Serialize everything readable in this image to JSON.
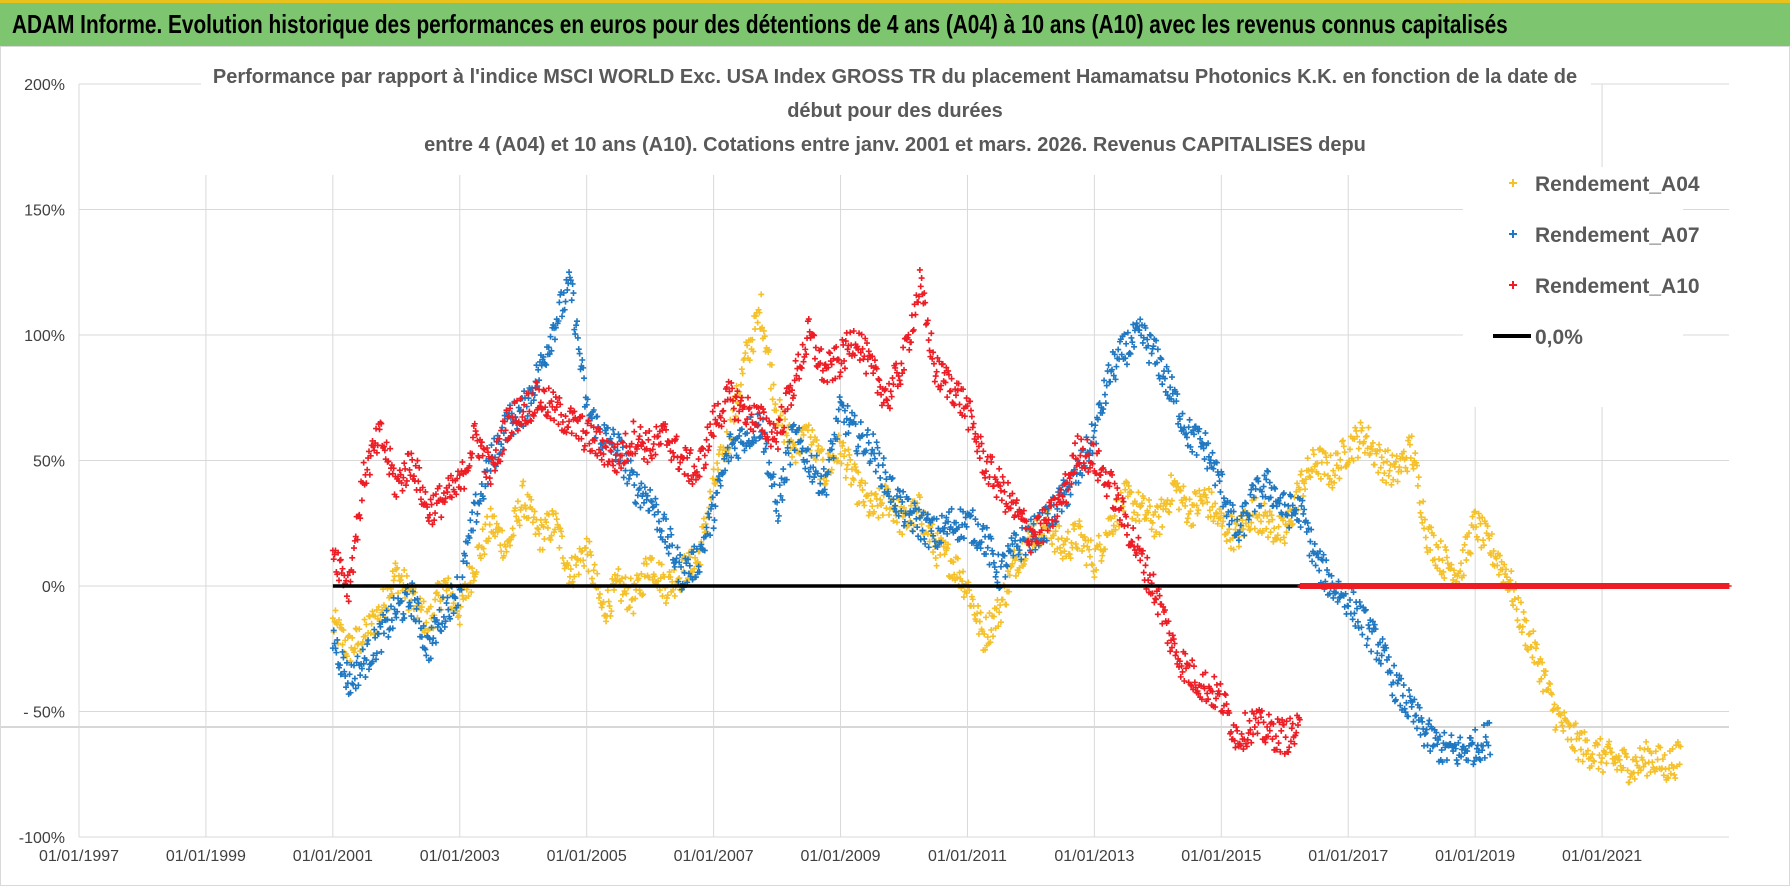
{
  "header": {
    "title": "ADAM Informe. Evolution historique des performances en euros pour des détentions de 4 ans (A04) à 10 ans (A10) avec les revenus connus capitalisés"
  },
  "colors": {
    "banner": "#7dc56e",
    "banner_border": "#e8c21a",
    "A04": "#f5c12b",
    "A07": "#1f78c1",
    "A10": "#ee1c24",
    "zero_line": "#000000",
    "grid": "#d9d9d9"
  },
  "chart_data": {
    "type": "scatter",
    "title_lines": [
      "Performance par rapport à l'indice MSCI WORLD Exc. USA Index GROSS TR  du placement Hamamatsu Photonics K.K. en fonction de la date de",
      "début pour des durées",
      "entre 4 (A04) et 10 ans (A10). Cotations entre janv. 2001 et mars. 2026. Revenus CAPITALISES depu"
    ],
    "xlabel": "",
    "ylabel": "",
    "x_ticks": [
      "01/01/1997",
      "01/01/1999",
      "01/01/2001",
      "01/01/2003",
      "01/01/2005",
      "01/01/2007",
      "01/01/2009",
      "01/01/2011",
      "01/01/2013",
      "01/01/2015",
      "01/01/2017",
      "01/01/2019",
      "01/01/2021"
    ],
    "xlim": [
      "1997-01-01",
      "2023-01-01"
    ],
    "y_ticks": [
      "200%",
      "150%",
      "100%",
      "50%",
      "0%",
      "- 50%",
      "-100%"
    ],
    "ylim": [
      -100,
      200
    ],
    "grid": true,
    "legend_position": "right",
    "legend": [
      {
        "label": "Rendement_A04",
        "marker": "+",
        "color": "#f5c12b"
      },
      {
        "label": "Rendement_A07",
        "marker": "+",
        "color": "#1f78c1"
      },
      {
        "label": "Rendement_A10",
        "marker": "+",
        "color": "#ee1c24"
      },
      {
        "label": "0,0%",
        "marker": "line",
        "color": "#000000"
      }
    ],
    "reference_line": {
      "y": 0,
      "from": "2001-01-01",
      "to": "2023-01-01"
    },
    "series": [
      {
        "name": "Rendement_A04",
        "color": "#f5c12b",
        "points": [
          [
            "2001-01",
            -15
          ],
          [
            "2001-04",
            -25
          ],
          [
            "2001-07",
            -20
          ],
          [
            "2001-10",
            -10
          ],
          [
            "2002-01",
            5
          ],
          [
            "2002-04",
            -5
          ],
          [
            "2002-07",
            -15
          ],
          [
            "2002-10",
            0
          ],
          [
            "2003-01",
            -10
          ],
          [
            "2003-04",
            10
          ],
          [
            "2003-07",
            25
          ],
          [
            "2003-10",
            15
          ],
          [
            "2004-01",
            35
          ],
          [
            "2004-04",
            20
          ],
          [
            "2004-07",
            25
          ],
          [
            "2004-10",
            5
          ],
          [
            "2005-01",
            15
          ],
          [
            "2005-04",
            -10
          ],
          [
            "2005-07",
            0
          ],
          [
            "2005-10",
            -5
          ],
          [
            "2006-01",
            10
          ],
          [
            "2006-04",
            0
          ],
          [
            "2006-07",
            5
          ],
          [
            "2006-10",
            10
          ],
          [
            "2007-01",
            40
          ],
          [
            "2007-04",
            60
          ],
          [
            "2007-07",
            90
          ],
          [
            "2007-10",
            110
          ],
          [
            "2008-01",
            70
          ],
          [
            "2008-04",
            55
          ],
          [
            "2008-07",
            60
          ],
          [
            "2008-10",
            45
          ],
          [
            "2009-01",
            55
          ],
          [
            "2009-04",
            40
          ],
          [
            "2009-07",
            30
          ],
          [
            "2009-10",
            35
          ],
          [
            "2010-01",
            25
          ],
          [
            "2010-04",
            30
          ],
          [
            "2010-07",
            15
          ],
          [
            "2010-10",
            10
          ],
          [
            "2011-01",
            0
          ],
          [
            "2011-04",
            -20
          ],
          [
            "2011-07",
            -10
          ],
          [
            "2011-10",
            10
          ],
          [
            "2012-01",
            20
          ],
          [
            "2012-04",
            25
          ],
          [
            "2012-07",
            15
          ],
          [
            "2012-10",
            20
          ],
          [
            "2013-01",
            10
          ],
          [
            "2013-04",
            25
          ],
          [
            "2013-07",
            35
          ],
          [
            "2013-10",
            30
          ],
          [
            "2014-01",
            25
          ],
          [
            "2014-04",
            40
          ],
          [
            "2014-07",
            30
          ],
          [
            "2014-10",
            35
          ],
          [
            "2015-01",
            25
          ],
          [
            "2015-04",
            20
          ],
          [
            "2015-07",
            30
          ],
          [
            "2015-10",
            25
          ],
          [
            "2016-01",
            20
          ],
          [
            "2016-04",
            40
          ],
          [
            "2016-07",
            50
          ],
          [
            "2016-10",
            45
          ],
          [
            "2017-01",
            55
          ],
          [
            "2017-04",
            60
          ],
          [
            "2017-07",
            50
          ],
          [
            "2017-10",
            45
          ],
          [
            "2018-01",
            55
          ],
          [
            "2018-04",
            20
          ],
          [
            "2018-07",
            10
          ],
          [
            "2018-10",
            5
          ],
          [
            "2019-01",
            25
          ],
          [
            "2019-04",
            15
          ],
          [
            "2019-07",
            5
          ],
          [
            "2019-10",
            -15
          ],
          [
            "2020-01",
            -30
          ],
          [
            "2020-04",
            -50
          ],
          [
            "2020-07",
            -60
          ],
          [
            "2020-10",
            -65
          ],
          [
            "2021-01",
            -68
          ],
          [
            "2021-04",
            -70
          ],
          [
            "2021-07",
            -72
          ],
          [
            "2021-10",
            -68
          ],
          [
            "2022-01",
            -72
          ],
          [
            "2022-04",
            -68
          ]
        ]
      },
      {
        "name": "Rendement_A07",
        "color": "#1f78c1",
        "points": [
          [
            "2001-01",
            -20
          ],
          [
            "2001-04",
            -38
          ],
          [
            "2001-07",
            -30
          ],
          [
            "2001-10",
            -20
          ],
          [
            "2002-01",
            -10
          ],
          [
            "2002-04",
            -5
          ],
          [
            "2002-07",
            -25
          ],
          [
            "2002-10",
            -10
          ],
          [
            "2003-01",
            0
          ],
          [
            "2003-04",
            30
          ],
          [
            "2003-07",
            50
          ],
          [
            "2003-10",
            65
          ],
          [
            "2004-01",
            70
          ],
          [
            "2004-04",
            85
          ],
          [
            "2004-07",
            105
          ],
          [
            "2004-10",
            120
          ],
          [
            "2005-01",
            70
          ],
          [
            "2005-04",
            60
          ],
          [
            "2005-07",
            55
          ],
          [
            "2005-10",
            40
          ],
          [
            "2006-01",
            35
          ],
          [
            "2006-04",
            20
          ],
          [
            "2006-07",
            5
          ],
          [
            "2006-10",
            10
          ],
          [
            "2007-01",
            30
          ],
          [
            "2007-04",
            55
          ],
          [
            "2007-07",
            60
          ],
          [
            "2007-10",
            65
          ],
          [
            "2008-01",
            30
          ],
          [
            "2008-04",
            60
          ],
          [
            "2008-07",
            50
          ],
          [
            "2008-10",
            40
          ],
          [
            "2009-01",
            70
          ],
          [
            "2009-04",
            60
          ],
          [
            "2009-07",
            55
          ],
          [
            "2009-10",
            40
          ],
          [
            "2010-01",
            30
          ],
          [
            "2010-04",
            25
          ],
          [
            "2010-07",
            20
          ],
          [
            "2010-10",
            25
          ],
          [
            "2011-01",
            25
          ],
          [
            "2011-04",
            20
          ],
          [
            "2011-07",
            5
          ],
          [
            "2011-10",
            15
          ],
          [
            "2012-01",
            20
          ],
          [
            "2012-04",
            25
          ],
          [
            "2012-07",
            35
          ],
          [
            "2012-10",
            45
          ],
          [
            "2013-01",
            60
          ],
          [
            "2013-04",
            85
          ],
          [
            "2013-07",
            95
          ],
          [
            "2013-10",
            100
          ],
          [
            "2014-01",
            90
          ],
          [
            "2014-04",
            75
          ],
          [
            "2014-07",
            60
          ],
          [
            "2014-10",
            55
          ],
          [
            "2015-01",
            40
          ],
          [
            "2015-04",
            20
          ],
          [
            "2015-07",
            35
          ],
          [
            "2015-10",
            40
          ],
          [
            "2016-01",
            30
          ],
          [
            "2016-04",
            30
          ],
          [
            "2016-07",
            10
          ],
          [
            "2016-10",
            0
          ],
          [
            "2017-01",
            -5
          ],
          [
            "2017-04",
            -15
          ],
          [
            "2017-07",
            -25
          ],
          [
            "2017-10",
            -40
          ],
          [
            "2018-01",
            -50
          ],
          [
            "2018-04",
            -60
          ],
          [
            "2018-07",
            -65
          ],
          [
            "2018-10",
            -66
          ],
          [
            "2019-01",
            -64
          ],
          [
            "2019-04",
            -60
          ]
        ]
      },
      {
        "name": "Rendement_A10",
        "color": "#ee1c24",
        "points": [
          [
            "2001-01",
            15
          ],
          [
            "2001-04",
            0
          ],
          [
            "2001-07",
            45
          ],
          [
            "2001-10",
            60
          ],
          [
            "2002-01",
            40
          ],
          [
            "2002-04",
            50
          ],
          [
            "2002-07",
            30
          ],
          [
            "2002-10",
            35
          ],
          [
            "2003-01",
            40
          ],
          [
            "2003-04",
            60
          ],
          [
            "2003-07",
            45
          ],
          [
            "2003-10",
            65
          ],
          [
            "2004-01",
            70
          ],
          [
            "2004-04",
            75
          ],
          [
            "2004-07",
            70
          ],
          [
            "2004-10",
            65
          ],
          [
            "2005-01",
            60
          ],
          [
            "2005-04",
            55
          ],
          [
            "2005-07",
            50
          ],
          [
            "2005-10",
            60
          ],
          [
            "2006-01",
            55
          ],
          [
            "2006-04",
            60
          ],
          [
            "2006-07",
            50
          ],
          [
            "2006-10",
            45
          ],
          [
            "2007-01",
            65
          ],
          [
            "2007-04",
            75
          ],
          [
            "2007-07",
            70
          ],
          [
            "2007-10",
            65
          ],
          [
            "2008-01",
            60
          ],
          [
            "2008-04",
            80
          ],
          [
            "2008-07",
            100
          ],
          [
            "2008-10",
            85
          ],
          [
            "2009-01",
            90
          ],
          [
            "2009-04",
            100
          ],
          [
            "2009-07",
            85
          ],
          [
            "2009-10",
            75
          ],
          [
            "2010-01",
            90
          ],
          [
            "2010-04",
            120
          ],
          [
            "2010-07",
            85
          ],
          [
            "2010-10",
            80
          ],
          [
            "2011-01",
            70
          ],
          [
            "2011-04",
            50
          ],
          [
            "2011-07",
            40
          ],
          [
            "2011-10",
            30
          ],
          [
            "2012-01",
            20
          ],
          [
            "2012-04",
            25
          ],
          [
            "2012-07",
            35
          ],
          [
            "2012-10",
            55
          ],
          [
            "2013-01",
            50
          ],
          [
            "2013-04",
            40
          ],
          [
            "2013-07",
            25
          ],
          [
            "2013-10",
            10
          ],
          [
            "2014-01",
            -5
          ],
          [
            "2014-04",
            -25
          ],
          [
            "2014-07",
            -35
          ],
          [
            "2014-10",
            -40
          ],
          [
            "2015-01",
            -45
          ],
          [
            "2015-04",
            -60
          ],
          [
            "2015-07",
            -55
          ],
          [
            "2015-10",
            -58
          ],
          [
            "2016-01",
            -60
          ],
          [
            "2016-04",
            -58
          ]
        ]
      },
      {
        "name": "Rendement_A10 (0%)",
        "color": "#ee1c24",
        "segment": {
          "from": "2016-04-01",
          "to": "2023-01-01",
          "y": 0
        }
      }
    ]
  }
}
